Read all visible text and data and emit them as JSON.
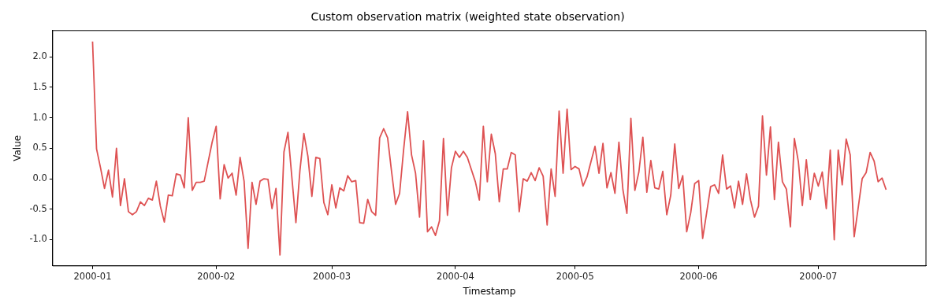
{
  "chart_data": {
    "type": "line",
    "title": "Custom observation matrix (weighted state observation)",
    "xlabel": "Timestamp",
    "ylabel": "Value",
    "xlim": [
      "1999-12-22",
      "2000-07-28"
    ],
    "xticks": [
      {
        "value": "2000-01-01",
        "label": "2000-01"
      },
      {
        "value": "2000-02-01",
        "label": "2000-02"
      },
      {
        "value": "2000-03-01",
        "label": "2000-03"
      },
      {
        "value": "2000-04-01",
        "label": "2000-04"
      },
      {
        "value": "2000-05-01",
        "label": "2000-05"
      },
      {
        "value": "2000-06-01",
        "label": "2000-06"
      },
      {
        "value": "2000-07-01",
        "label": "2000-07"
      }
    ],
    "ylim": [
      -1.43,
      2.43
    ],
    "yticks": [
      {
        "value": -1,
        "label": "-1.0"
      },
      {
        "value": -0.5,
        "label": "-0.5"
      },
      {
        "value": 0,
        "label": "0.0"
      },
      {
        "value": 0.5,
        "label": "0.5"
      },
      {
        "value": 1,
        "label": "1.0"
      },
      {
        "value": 1.5,
        "label": "1.5"
      },
      {
        "value": 2,
        "label": "2.0"
      }
    ],
    "grid": false,
    "legend": false,
    "marker": "none",
    "line_style": "solid",
    "x": [
      "2000-01-01",
      "2000-01-02",
      "2000-01-03",
      "2000-01-04",
      "2000-01-05",
      "2000-01-06",
      "2000-01-07",
      "2000-01-08",
      "2000-01-09",
      "2000-01-10",
      "2000-01-11",
      "2000-01-12",
      "2000-01-13",
      "2000-01-14",
      "2000-01-15",
      "2000-01-16",
      "2000-01-17",
      "2000-01-18",
      "2000-01-19",
      "2000-01-20",
      "2000-01-21",
      "2000-01-22",
      "2000-01-23",
      "2000-01-24",
      "2000-01-25",
      "2000-01-26",
      "2000-01-27",
      "2000-01-28",
      "2000-01-29",
      "2000-01-30",
      "2000-01-31",
      "2000-02-01",
      "2000-02-02",
      "2000-02-03",
      "2000-02-04",
      "2000-02-05",
      "2000-02-06",
      "2000-02-07",
      "2000-02-08",
      "2000-02-09",
      "2000-02-10",
      "2000-02-11",
      "2000-02-12",
      "2000-02-13",
      "2000-02-14",
      "2000-02-15",
      "2000-02-16",
      "2000-02-17",
      "2000-02-18",
      "2000-02-19",
      "2000-02-20",
      "2000-02-21",
      "2000-02-22",
      "2000-02-23",
      "2000-02-24",
      "2000-02-25",
      "2000-02-26",
      "2000-02-27",
      "2000-02-28",
      "2000-02-29",
      "2000-03-01",
      "2000-03-02",
      "2000-03-03",
      "2000-03-04",
      "2000-03-05",
      "2000-03-06",
      "2000-03-07",
      "2000-03-08",
      "2000-03-09",
      "2000-03-10",
      "2000-03-11",
      "2000-03-12",
      "2000-03-13",
      "2000-03-14",
      "2000-03-15",
      "2000-03-16",
      "2000-03-17",
      "2000-03-18",
      "2000-03-19",
      "2000-03-20",
      "2000-03-21",
      "2000-03-22",
      "2000-03-23",
      "2000-03-24",
      "2000-03-25",
      "2000-03-26",
      "2000-03-27",
      "2000-03-28",
      "2000-03-29",
      "2000-03-30",
      "2000-03-31",
      "2000-04-01",
      "2000-04-02",
      "2000-04-03",
      "2000-04-04",
      "2000-04-05",
      "2000-04-06",
      "2000-04-07",
      "2000-04-08",
      "2000-04-09",
      "2000-04-10",
      "2000-04-11",
      "2000-04-12",
      "2000-04-13",
      "2000-04-14",
      "2000-04-15",
      "2000-04-16",
      "2000-04-17",
      "2000-04-18",
      "2000-04-19",
      "2000-04-20",
      "2000-04-21",
      "2000-04-22",
      "2000-04-23",
      "2000-04-24",
      "2000-04-25",
      "2000-04-26",
      "2000-04-27",
      "2000-04-28",
      "2000-04-29",
      "2000-04-30",
      "2000-05-01",
      "2000-05-02",
      "2000-05-03",
      "2000-05-04",
      "2000-05-05",
      "2000-05-06",
      "2000-05-07",
      "2000-05-08",
      "2000-05-09",
      "2000-05-10",
      "2000-05-11",
      "2000-05-12",
      "2000-05-13",
      "2000-05-14",
      "2000-05-15",
      "2000-05-16",
      "2000-05-17",
      "2000-05-18",
      "2000-05-19",
      "2000-05-20",
      "2000-05-21",
      "2000-05-22",
      "2000-05-23",
      "2000-05-24",
      "2000-05-25",
      "2000-05-26",
      "2000-05-27",
      "2000-05-28",
      "2000-05-29",
      "2000-05-30",
      "2000-05-31",
      "2000-06-01",
      "2000-06-02",
      "2000-06-03",
      "2000-06-04",
      "2000-06-05",
      "2000-06-06",
      "2000-06-07",
      "2000-06-08",
      "2000-06-09",
      "2000-06-10",
      "2000-06-11",
      "2000-06-12",
      "2000-06-13",
      "2000-06-14",
      "2000-06-15",
      "2000-06-16",
      "2000-06-17",
      "2000-06-18",
      "2000-06-19",
      "2000-06-20",
      "2000-06-21",
      "2000-06-22",
      "2000-06-23",
      "2000-06-24",
      "2000-06-25",
      "2000-06-26",
      "2000-06-27",
      "2000-06-28",
      "2000-06-29",
      "2000-06-30",
      "2000-07-01",
      "2000-07-02",
      "2000-07-03",
      "2000-07-04",
      "2000-07-05",
      "2000-07-06",
      "2000-07-07",
      "2000-07-08",
      "2000-07-09",
      "2000-07-10",
      "2000-07-11",
      "2000-07-12",
      "2000-07-13",
      "2000-07-14",
      "2000-07-15",
      "2000-07-16",
      "2000-07-17",
      "2000-07-18"
    ],
    "series": [
      {
        "color": "#de5253",
        "values": [
          2.25,
          0.49,
          0.18,
          -0.16,
          0.14,
          -0.3,
          0.5,
          -0.44,
          0.0,
          -0.54,
          -0.59,
          -0.54,
          -0.38,
          -0.44,
          -0.32,
          -0.35,
          -0.04,
          -0.45,
          -0.71,
          -0.27,
          -0.28,
          0.08,
          0.06,
          -0.15,
          1.0,
          -0.19,
          -0.06,
          -0.06,
          -0.04,
          0.28,
          0.6,
          0.86,
          -0.33,
          0.23,
          0.01,
          0.09,
          -0.27,
          0.35,
          -0.04,
          -1.14,
          -0.06,
          -0.42,
          -0.04,
          0.0,
          -0.01,
          -0.49,
          -0.16,
          -1.25,
          0.44,
          0.76,
          0.01,
          -0.72,
          0.13,
          0.74,
          0.37,
          -0.29,
          0.35,
          0.33,
          -0.39,
          -0.59,
          -0.1,
          -0.48,
          -0.15,
          -0.2,
          0.05,
          -0.05,
          -0.03,
          -0.72,
          -0.73,
          -0.34,
          -0.54,
          -0.6,
          0.67,
          0.82,
          0.67,
          0.11,
          -0.42,
          -0.24,
          0.47,
          1.1,
          0.39,
          0.09,
          -0.63,
          0.62,
          -0.87,
          -0.79,
          -0.93,
          -0.69,
          0.66,
          -0.6,
          0.18,
          0.45,
          0.35,
          0.45,
          0.35,
          0.15,
          -0.05,
          -0.35,
          0.86,
          -0.05,
          0.73,
          0.41,
          -0.38,
          0.16,
          0.16,
          0.43,
          0.39,
          -0.54,
          0.0,
          -0.04,
          0.1,
          -0.03,
          0.18,
          0.04,
          -0.76,
          0.16,
          -0.29,
          1.11,
          0.09,
          1.14,
          0.15,
          0.2,
          0.16,
          -0.12,
          0.03,
          0.28,
          0.53,
          0.09,
          0.58,
          -0.15,
          0.1,
          -0.24,
          0.6,
          -0.18,
          -0.57,
          0.99,
          -0.19,
          0.11,
          0.68,
          -0.22,
          0.3,
          -0.15,
          -0.17,
          0.12,
          -0.59,
          -0.27,
          0.57,
          -0.16,
          0.05,
          -0.87,
          -0.56,
          -0.08,
          -0.03,
          -0.98,
          -0.56,
          -0.13,
          -0.1,
          -0.24,
          0.39,
          -0.17,
          -0.12,
          -0.48,
          -0.04,
          -0.42,
          0.08,
          -0.35,
          -0.63,
          -0.45,
          1.03,
          0.06,
          0.85,
          -0.34,
          0.6,
          -0.05,
          -0.17,
          -0.79,
          0.66,
          0.28,
          -0.44,
          0.31,
          -0.34,
          0.09,
          -0.12,
          0.11,
          -0.49,
          0.47,
          -1.0,
          0.47,
          -0.1,
          0.65,
          0.39,
          -0.95,
          -0.48,
          0.0,
          0.1,
          0.43,
          0.29,
          -0.05,
          0.01,
          -0.18
        ]
      }
    ]
  }
}
